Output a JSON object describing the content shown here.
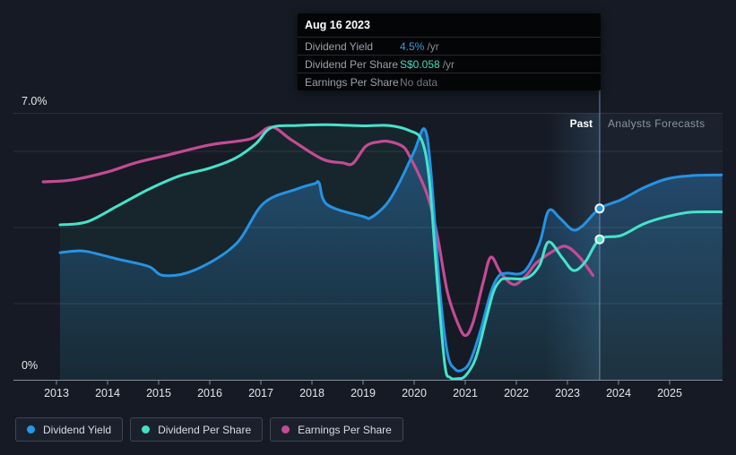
{
  "tooltip": {
    "date": "Aug 16 2023",
    "rows": [
      {
        "label": "Dividend Yield",
        "value": "4.5%",
        "suffix": "/yr",
        "value_color": "#2da0ea"
      },
      {
        "label": "Dividend Per Share",
        "value": "S$0.058",
        "suffix": "/yr",
        "value_color": "#41dfc3"
      },
      {
        "label": "Earnings Per Share",
        "value": "No data",
        "suffix": "",
        "value_color": "#70767c"
      }
    ]
  },
  "axis": {
    "y_top_label": "7.0%",
    "y_bottom_label": "0%",
    "years": [
      2013,
      2014,
      2015,
      2016,
      2017,
      2018,
      2019,
      2020,
      2021,
      2022,
      2023,
      2024,
      2025
    ]
  },
  "regions": {
    "past_label": "Past",
    "forecast_label": "Analysts Forecasts"
  },
  "legend": [
    {
      "label": "Dividend Yield",
      "color": "#1e9be9"
    },
    {
      "label": "Dividend Per Share",
      "color": "#40e0c8"
    },
    {
      "label": "Earnings Per Share",
      "color": "#c34b94"
    }
  ],
  "chart_data": {
    "type": "line",
    "title": "",
    "xlabel": "",
    "ylabel": "",
    "x_axis": {
      "ticks": [
        2013,
        2014,
        2015,
        2016,
        2017,
        2018,
        2019,
        2020,
        2021,
        2022,
        2023,
        2024,
        2025
      ],
      "range": [
        2012.7,
        2026.05
      ]
    },
    "y_axis": {
      "unit": "%",
      "range": [
        0,
        7
      ],
      "labeled_ticks": [
        "7.0%",
        "0%"
      ],
      "gridline_values": [
        2,
        4,
        6,
        7
      ]
    },
    "today": {
      "x": 2023.63,
      "past_band_start": 2022.56
    },
    "series": [
      {
        "name": "Dividend Yield",
        "color": "#2693e3",
        "has_area_fill": true,
        "marker": {
          "x": 2023.63,
          "y": 4.5
        },
        "points": [
          [
            2013.07,
            3.34
          ],
          [
            2013.35,
            3.38
          ],
          [
            2013.6,
            3.37
          ],
          [
            2014.2,
            3.17
          ],
          [
            2014.8,
            2.98
          ],
          [
            2015.1,
            2.74
          ],
          [
            2015.7,
            2.88
          ],
          [
            2016.5,
            3.55
          ],
          [
            2017.05,
            4.63
          ],
          [
            2017.7,
            5.01
          ],
          [
            2018.05,
            5.15
          ],
          [
            2018.14,
            5.17
          ],
          [
            2018.3,
            4.6
          ],
          [
            2019.0,
            4.29
          ],
          [
            2019.15,
            4.26
          ],
          [
            2019.45,
            4.6
          ],
          [
            2019.7,
            5.15
          ],
          [
            2020.0,
            6.0
          ],
          [
            2020.2,
            6.59
          ],
          [
            2020.32,
            5.6
          ],
          [
            2020.5,
            2.4
          ],
          [
            2020.65,
            0.7
          ],
          [
            2020.8,
            0.28
          ],
          [
            2020.95,
            0.26
          ],
          [
            2021.1,
            0.5
          ],
          [
            2021.3,
            1.3
          ],
          [
            2021.5,
            2.3
          ],
          [
            2021.65,
            2.72
          ],
          [
            2021.8,
            2.8
          ],
          [
            2022.15,
            2.84
          ],
          [
            2022.45,
            3.58
          ],
          [
            2022.63,
            4.44
          ],
          [
            2022.85,
            4.25
          ],
          [
            2023.1,
            3.94
          ],
          [
            2023.3,
            4.05
          ],
          [
            2023.63,
            4.5
          ],
          [
            2024.05,
            4.73
          ],
          [
            2024.5,
            5.05
          ],
          [
            2024.93,
            5.27
          ],
          [
            2025.4,
            5.36
          ],
          [
            2026.03,
            5.38
          ]
        ]
      },
      {
        "name": "Dividend Per Share",
        "color": "#46e3ca",
        "has_area_fill": true,
        "marker": {
          "x": 2023.63,
          "y": 3.69
        },
        "points": [
          [
            2013.07,
            4.07
          ],
          [
            2013.6,
            4.15
          ],
          [
            2014.2,
            4.57
          ],
          [
            2014.8,
            5.0
          ],
          [
            2015.4,
            5.35
          ],
          [
            2016.0,
            5.56
          ],
          [
            2016.5,
            5.82
          ],
          [
            2016.9,
            6.2
          ],
          [
            2017.2,
            6.62
          ],
          [
            2017.7,
            6.68
          ],
          [
            2018.3,
            6.7
          ],
          [
            2019.0,
            6.67
          ],
          [
            2019.5,
            6.68
          ],
          [
            2019.9,
            6.55
          ],
          [
            2020.15,
            6.28
          ],
          [
            2020.3,
            5.2
          ],
          [
            2020.45,
            2.6
          ],
          [
            2020.6,
            0.4
          ],
          [
            2020.7,
            0.06
          ],
          [
            2020.85,
            0.03
          ],
          [
            2021.0,
            0.1
          ],
          [
            2021.2,
            0.55
          ],
          [
            2021.4,
            1.55
          ],
          [
            2021.55,
            2.3
          ],
          [
            2021.68,
            2.6
          ],
          [
            2021.8,
            2.66
          ],
          [
            2022.2,
            2.67
          ],
          [
            2022.45,
            3.0
          ],
          [
            2022.63,
            3.62
          ],
          [
            2022.9,
            3.2
          ],
          [
            2023.12,
            2.87
          ],
          [
            2023.35,
            3.1
          ],
          [
            2023.63,
            3.69
          ],
          [
            2024.05,
            3.79
          ],
          [
            2024.5,
            4.1
          ],
          [
            2024.93,
            4.28
          ],
          [
            2025.4,
            4.4
          ],
          [
            2026.03,
            4.41
          ]
        ]
      },
      {
        "name": "Earnings Per Share",
        "color": "#c44b94",
        "has_area_fill": false,
        "points": [
          [
            2012.74,
            5.2
          ],
          [
            2013.3,
            5.25
          ],
          [
            2014.0,
            5.46
          ],
          [
            2014.55,
            5.7
          ],
          [
            2015.2,
            5.91
          ],
          [
            2016.0,
            6.17
          ],
          [
            2016.8,
            6.33
          ],
          [
            2017.2,
            6.64
          ],
          [
            2017.6,
            6.3
          ],
          [
            2018.2,
            5.8
          ],
          [
            2018.6,
            5.7
          ],
          [
            2018.8,
            5.68
          ],
          [
            2019.05,
            6.13
          ],
          [
            2019.3,
            6.25
          ],
          [
            2019.5,
            6.26
          ],
          [
            2019.75,
            6.15
          ],
          [
            2019.9,
            5.9
          ],
          [
            2020.25,
            4.88
          ],
          [
            2020.45,
            3.8
          ],
          [
            2020.65,
            2.3
          ],
          [
            2020.85,
            1.5
          ],
          [
            2021.0,
            1.16
          ],
          [
            2021.15,
            1.5
          ],
          [
            2021.35,
            2.55
          ],
          [
            2021.5,
            3.22
          ],
          [
            2021.7,
            2.8
          ],
          [
            2021.95,
            2.5
          ],
          [
            2022.2,
            2.75
          ],
          [
            2022.4,
            3.08
          ],
          [
            2022.8,
            3.44
          ],
          [
            2023.0,
            3.49
          ],
          [
            2023.25,
            3.2
          ],
          [
            2023.5,
            2.74
          ]
        ]
      }
    ]
  }
}
